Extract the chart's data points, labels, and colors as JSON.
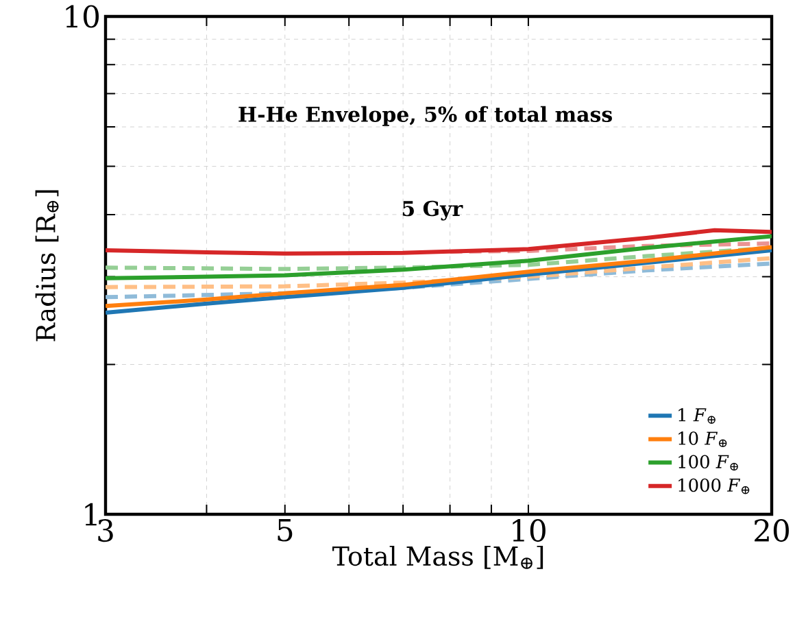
{
  "chart_data": {
    "type": "line",
    "xlabel": "Total Mass [M$_{⊕}$]",
    "ylabel": "Radius [R$_{⊕}$]",
    "annotations": [
      "H-He Envelope, 5% of total mass",
      "5 Gyr"
    ],
    "log": "xy",
    "grid": true,
    "legend": "bottom right",
    "xlim": [
      3,
      20
    ],
    "ylim": [
      1,
      10
    ],
    "xticks": [
      3,
      {
        "value": 4,
        "label": null
      },
      5,
      {
        "value": 6,
        "label": null
      },
      {
        "value": 7,
        "label": null
      },
      {
        "value": 8,
        "label": null
      },
      {
        "value": 9,
        "label": null
      },
      10,
      20
    ],
    "yticks": [
      1,
      {
        "value": 2,
        "label": null
      },
      {
        "value": 3,
        "label": null
      },
      {
        "value": 4,
        "label": null
      },
      {
        "value": 5,
        "label": null
      },
      {
        "value": 6,
        "label": null
      },
      {
        "value": 7,
        "label": null
      },
      {
        "value": 8,
        "label": null
      },
      {
        "value": 9,
        "label": null
      },
      10
    ],
    "series": [
      {
        "color": "#8fbbd9",
        "line_style": "dashed",
        "x": [
          3,
          5,
          7,
          10,
          14,
          20
        ],
        "values": [
          2.73,
          2.78,
          2.85,
          2.97,
          3.09,
          3.19
        ]
      },
      {
        "color": "#ffbf86",
        "line_style": "dashed",
        "x": [
          3,
          5,
          7,
          10,
          14,
          20
        ],
        "values": [
          2.86,
          2.87,
          2.92,
          3.0,
          3.13,
          3.27
        ]
      },
      {
        "color": "#95cf95",
        "line_style": "dashed",
        "x": [
          3,
          5,
          7,
          10,
          14,
          20
        ],
        "values": [
          3.13,
          3.11,
          3.13,
          3.17,
          3.3,
          3.43
        ]
      },
      {
        "color": "#ea9393",
        "line_style": "dashed",
        "x": [
          8,
          10,
          14,
          20
        ],
        "values": [
          3.37,
          3.38,
          3.46,
          3.5
        ]
      },
      {
        "name": "1 *F*$_{⊕}$",
        "color": "#1f77b4",
        "line_style": "solid",
        "x": [
          3,
          4,
          5,
          7,
          10,
          14,
          20
        ],
        "values": [
          2.54,
          2.65,
          2.73,
          2.85,
          3.03,
          3.2,
          3.39
        ]
      },
      {
        "name": "10 *F*$_{⊕}$",
        "color": "#ff7f0e",
        "line_style": "solid",
        "x": [
          3,
          4,
          5,
          7,
          10,
          14,
          20
        ],
        "values": [
          2.62,
          2.7,
          2.78,
          2.89,
          3.07,
          3.23,
          3.44
        ]
      },
      {
        "name": "100 *F*$_{⊕}$",
        "color": "#2ca02c",
        "line_style": "solid",
        "x": [
          3,
          4,
          5,
          7,
          10,
          14,
          20
        ],
        "values": [
          2.98,
          3.0,
          3.02,
          3.1,
          3.23,
          3.43,
          3.62
        ]
      },
      {
        "name": "1000 *F*$_{⊕}$",
        "color": "#d62728",
        "line_style": "solid",
        "x": [
          3,
          4,
          5,
          7,
          10,
          14,
          17,
          20
        ],
        "values": [
          3.39,
          3.36,
          3.34,
          3.35,
          3.41,
          3.59,
          3.72,
          3.69
        ]
      }
    ]
  }
}
